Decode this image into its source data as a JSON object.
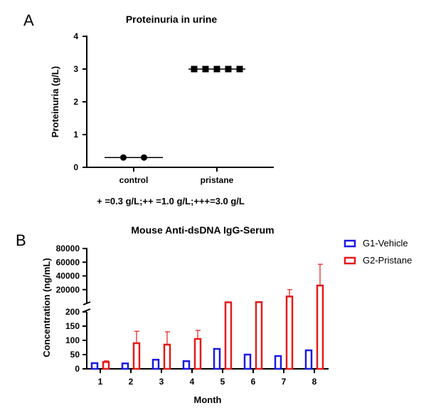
{
  "panel_a_letter": "A",
  "panel_b_letter": "B",
  "chart_data": [
    {
      "type": "scatter",
      "title": "Proteinuria in urine",
      "ylabel": "Proteinuria (g/L)",
      "xlabel": "",
      "categories": [
        "control",
        "pristane"
      ],
      "points": [
        {
          "category": "control",
          "values": [
            0.3,
            0.3
          ]
        },
        {
          "category": "pristane",
          "values": [
            3.0,
            3.0,
            3.0,
            3.0,
            3.0
          ]
        }
      ],
      "medians": [
        0.3,
        3.0
      ],
      "ylim": [
        0,
        4
      ],
      "yticks": [
        "0",
        "1",
        "2",
        "3",
        "4"
      ],
      "annotation": "+ =0.3 g/L;++ =1.0 g/L;+++=3.0 g/L",
      "marker_colors": {
        "control": "#000000",
        "pristane": "#000000"
      }
    },
    {
      "type": "bar",
      "title": "Mouse Anti-dsDNA IgG-Serum",
      "xlabel": "Month",
      "ylabel": "Concentration (ng/mL)",
      "categories": [
        "1",
        "2",
        "3",
        "4",
        "5",
        "6",
        "7",
        "8"
      ],
      "y_axis_break": {
        "lower_range": [
          0,
          200
        ],
        "upper_range": [
          0,
          80000
        ]
      },
      "lower_yticks": [
        "0",
        "50",
        "100",
        "150",
        "200"
      ],
      "upper_yticks": [
        "20000",
        "40000",
        "60000",
        "80000"
      ],
      "series": [
        {
          "name": "G1-Vehicle",
          "color": "#1a1ae6",
          "values": [
            20,
            19,
            32,
            27,
            70,
            50,
            45,
            65
          ],
          "errors": [
            null,
            null,
            null,
            null,
            null,
            null,
            null,
            null
          ]
        },
        {
          "name": "G2-Pristane",
          "color": "#e61a1a",
          "values": [
            24,
            90,
            85,
            105,
            1500,
            1800,
            10000,
            26000
          ],
          "errors": [
            4,
            42,
            45,
            30,
            null,
            null,
            10000,
            31000
          ]
        }
      ],
      "legend_position": "top-right"
    }
  ]
}
